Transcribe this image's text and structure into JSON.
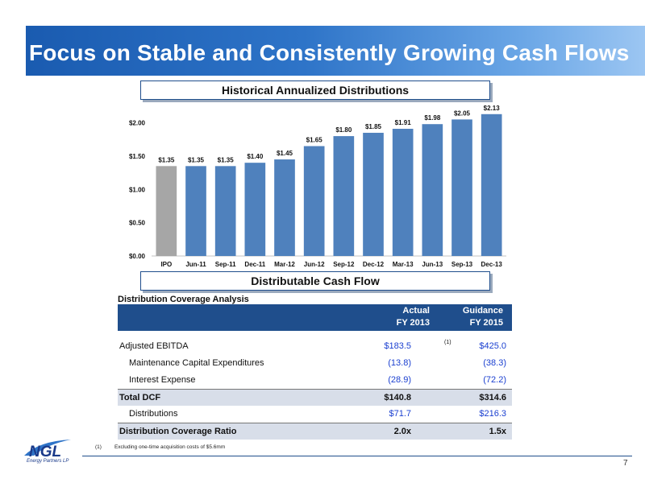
{
  "slide": {
    "title": "Focus on Stable and Consistently Growing Cash Flows",
    "page_number": "7"
  },
  "historical_section": {
    "title": "Historical Annualized Distributions"
  },
  "dcf_section": {
    "title": "Distributable Cash Flow"
  },
  "chart_data": {
    "type": "bar",
    "title": "Historical Annualized Distributions",
    "categories": [
      "IPO",
      "Jun-11",
      "Sep-11",
      "Dec-11",
      "Mar-12",
      "Jun-12",
      "Sep-12",
      "Dec-12",
      "Mar-13",
      "Jun-13",
      "Sep-13",
      "Dec-13"
    ],
    "values": [
      1.35,
      1.35,
      1.35,
      1.4,
      1.45,
      1.65,
      1.8,
      1.85,
      1.91,
      1.98,
      2.05,
      2.13
    ],
    "value_labels": [
      "$1.35",
      "$1.35",
      "$1.35",
      "$1.40",
      "$1.45",
      "$1.65",
      "$1.80",
      "$1.85",
      "$1.91",
      "$1.98",
      "$2.05",
      "$2.13"
    ],
    "y_ticks": [
      "$0.00",
      "$0.50",
      "$1.00",
      "$1.50",
      "$2.00"
    ],
    "y_tick_values": [
      0,
      0.5,
      1.0,
      1.5,
      2.0
    ],
    "ylim": [
      0,
      2.2
    ],
    "colors": {
      "first_bar": "#a6a6a6",
      "bars": "#4f81bd"
    },
    "grid": false
  },
  "table": {
    "caption": "Distribution Coverage Analysis",
    "col1_header_line1": "Actual",
    "col1_header_line2": "FY 2013",
    "col2_header_line1": "Guidance",
    "col2_header_line2": "FY 2015",
    "footnote_marker": "(1)",
    "rows": [
      {
        "label": "Adjusted EBITDA",
        "actual": "$183.5",
        "guidance": "$425.0"
      },
      {
        "label": "Maintenance Capital Expenditures",
        "actual": "(13.8)",
        "guidance": "(38.3)"
      },
      {
        "label": "Interest Expense",
        "actual": "(28.9)",
        "guidance": "(72.2)"
      },
      {
        "label": "Total DCF",
        "actual": "$140.8",
        "guidance": "$314.6"
      },
      {
        "label": "Distributions",
        "actual": "$71.7",
        "guidance": "$216.3"
      },
      {
        "label": "Distribution Coverage Ratio",
        "actual": "2.0x",
        "guidance": "1.5x"
      }
    ]
  },
  "footnote": {
    "marker": "(1)",
    "text": "Excluding one-time acquisition costs of $5.6mm"
  },
  "logo": {
    "wordmark": "NGL",
    "caption": "Energy Partners LP"
  },
  "colors": {
    "brand_blue": "#1f4e8c",
    "value_blue": "#1a3fd0",
    "shade_row": "#d8dee9"
  }
}
